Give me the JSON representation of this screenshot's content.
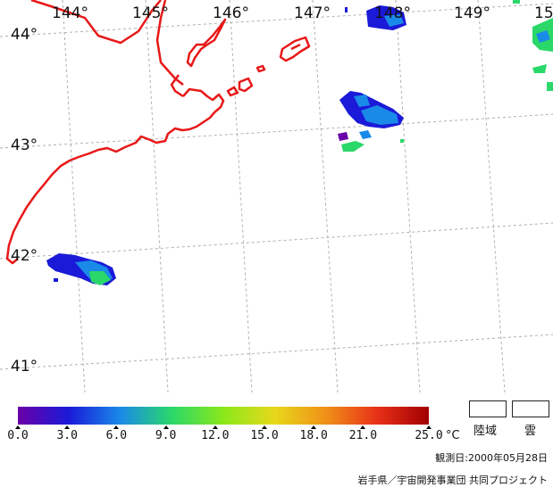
{
  "map": {
    "longitude_labels": [
      "144°",
      "145°",
      "146°",
      "147°",
      "148°",
      "149°",
      "15"
    ],
    "latitude_labels": [
      "44°",
      "43°",
      "42°",
      "41°"
    ],
    "colors": {
      "coastline": "#e81818",
      "grid": "#b0b0b0",
      "water_background": "#ffffff"
    }
  },
  "colorbar": {
    "tick_labels": [
      "0.0",
      "3.0",
      "6.0",
      "9.0",
      "12.0",
      "15.0",
      "18.0",
      "21.0",
      "25.0"
    ],
    "tick_values": [
      0,
      3,
      6,
      9,
      12,
      15,
      18,
      21,
      25
    ],
    "unit": "°C",
    "range": [
      0,
      25
    ],
    "colors": [
      "#6a00a8",
      "#1a1ad8",
      "#1a8ae8",
      "#2ad86a",
      "#8ae81a",
      "#e8d81a",
      "#f09018",
      "#e83018",
      "#a00000"
    ]
  },
  "legend": {
    "land_label": "陸域",
    "cloud_label": "雲"
  },
  "observation": "観測日:2000年05月28日",
  "credit": "岩手県／宇宙開発事業団 共同プロジェクト"
}
